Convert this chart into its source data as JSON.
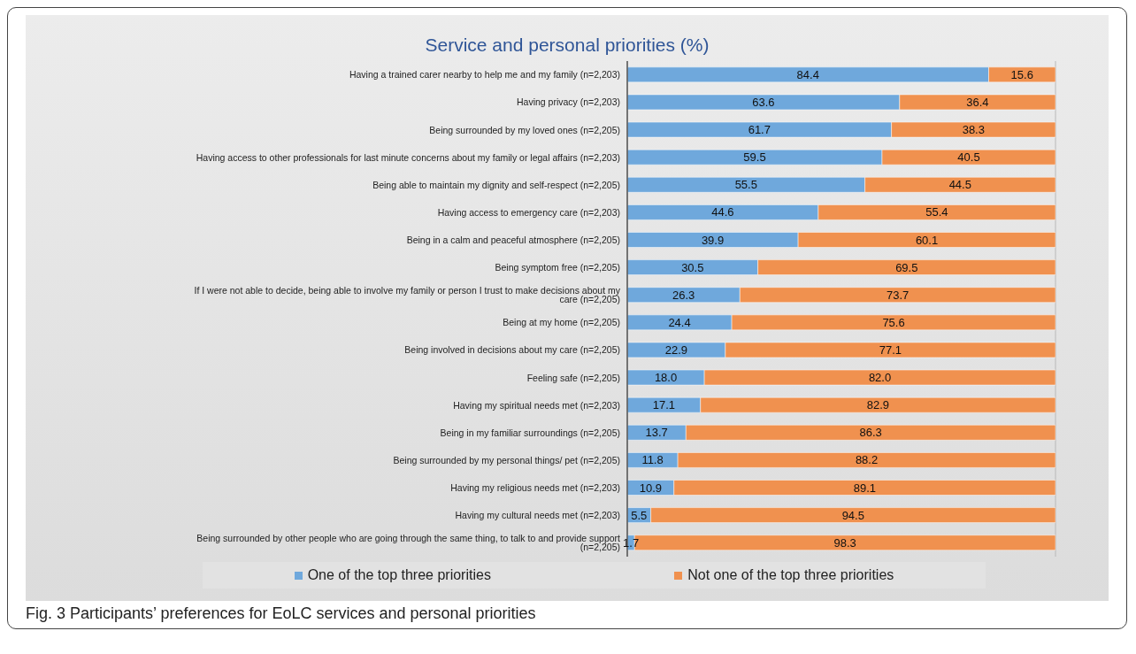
{
  "chart_data": {
    "type": "bar",
    "orientation": "horizontal",
    "stacked": true,
    "title": "Service and personal priorities (%)",
    "categories": [
      "Having a trained carer nearby to help me and my family (n=2,203)",
      "Having privacy (n=2,203)",
      "Being surrounded by my loved ones (n=2,205)",
      "Having access to other professionals for last minute concerns about my family or legal affairs (n=2,203)",
      "Being able to maintain my dignity and self-respect (n=2,205)",
      "Having access to emergency care (n=2,203)",
      "Being in a calm and peaceful atmosphere (n=2,205)",
      "Being symptom free (n=2,205)",
      "If I were not able to decide, being able to involve my family or person I trust to make decisions about my care (n=2,205)",
      "Being at my home (n=2,205)",
      "Being involved in decisions about my care (n=2,205)",
      "Feeling safe (n=2,205)",
      "Having my spiritual needs met (n=2,203)",
      "Being in my familiar surroundings (n=2,205)",
      "Being surrounded by my personal things/ pet (n=2,205)",
      "Having my religious needs met (n=2,203)",
      "Having my cultural needs met (n=2,203)",
      "Being surrounded by other people who are going through the same thing, to talk to and provide support (n=2,205)"
    ],
    "series": [
      {
        "name": "One of the top three priorities",
        "color": "#6fa8dc",
        "values": [
          84.4,
          63.6,
          61.7,
          59.5,
          55.5,
          44.6,
          39.9,
          30.5,
          26.3,
          24.4,
          22.9,
          18.0,
          17.1,
          13.7,
          11.8,
          10.9,
          5.5,
          1.7
        ],
        "value_labels": [
          "84.4",
          "63.6",
          "61.7",
          "59.5",
          "55.5",
          "44.6",
          "39.9",
          "30.5",
          "26.3",
          "24.4",
          "22.9",
          "18.0",
          "17.1",
          "13.7",
          "11.8",
          "10.9",
          "5.5",
          "1.7"
        ]
      },
      {
        "name": "Not one of the top three priorities",
        "color": "#f0914f",
        "values": [
          15.6,
          36.4,
          38.3,
          40.5,
          44.5,
          55.4,
          60.1,
          69.5,
          73.7,
          75.6,
          77.1,
          82.0,
          82.9,
          86.3,
          88.2,
          89.1,
          94.5,
          98.3
        ],
        "value_labels": [
          "15.6",
          "36.4",
          "38.3",
          "40.5",
          "44.5",
          "55.4",
          "60.1",
          "69.5",
          "73.7",
          "75.6",
          "77.1",
          "82.0",
          "82.9",
          "86.3",
          "88.2",
          "89.1",
          "94.5",
          "98.3"
        ]
      }
    ],
    "xlim": [
      0,
      100
    ],
    "grid": "x",
    "tick_labels": "y",
    "legend": "bottom",
    "annotations": [
      "Fig. 3  Participants’ preferences for EoLC services and personal priorities"
    ]
  }
}
